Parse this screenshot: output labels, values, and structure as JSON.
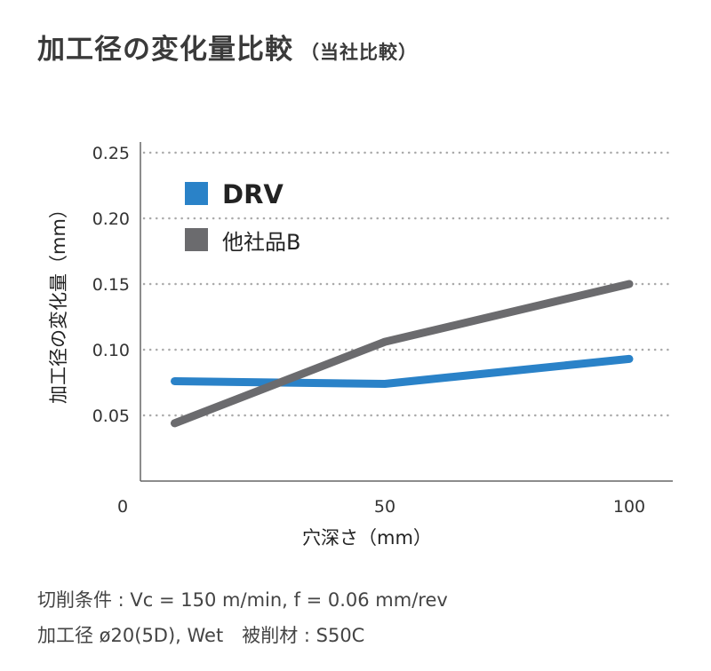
{
  "title": "加工径の変化量比較",
  "subtitle": "（当社比較）",
  "notes": [
    "切削条件 : Vc = 150 m/min, f = 0.06 mm/rev",
    "加工径 ø20(5D),  Wet　被削材 : S50C"
  ],
  "chart_data": {
    "type": "line",
    "xlabel": "穴深さ（mm）",
    "ylabel": "加工径の変化量（mm）",
    "xlim": [
      0,
      100
    ],
    "ylim": [
      0,
      0.25
    ],
    "xticks": [
      "0",
      "50",
      "100"
    ],
    "yticks": [
      "0.05",
      "0.10",
      "0.15",
      "0.20",
      "0.25"
    ],
    "grid": "horizontal dotted",
    "legend": "top-left",
    "x": [
      7,
      50,
      100
    ],
    "series": [
      {
        "name": "DRV",
        "color": "#2a82c8",
        "values": [
          0.076,
          0.074,
          0.093
        ]
      },
      {
        "name": "他社品B",
        "color": "#6b6b6e",
        "values": [
          0.044,
          0.106,
          0.15
        ]
      }
    ]
  }
}
